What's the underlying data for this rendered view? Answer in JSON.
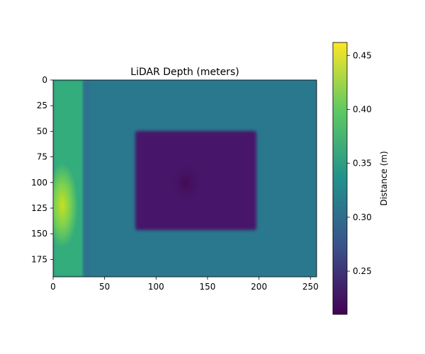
{
  "chart_data": {
    "type": "heatmap",
    "title": "LiDAR Depth (meters)",
    "xlabel": "",
    "ylabel": "",
    "image_size": {
      "width": 256,
      "height": 192
    },
    "xlim": [
      0,
      256
    ],
    "ylim": [
      192,
      0
    ],
    "xticks": [
      0,
      50,
      100,
      150,
      200,
      250
    ],
    "yticks": [
      0,
      25,
      50,
      75,
      100,
      125,
      150,
      175
    ],
    "colormap": "viridis",
    "grid": false,
    "background_depth_m": 0.33,
    "regions": [
      {
        "name": "box",
        "x_range": [
          80,
          198
        ],
        "y_range": [
          50,
          145
        ],
        "depth_m": 0.215,
        "min_depth_m": 0.21
      },
      {
        "name": "left_strip",
        "x_range": [
          0,
          30
        ],
        "y_range": [
          0,
          192
        ],
        "depth_m": 0.37,
        "max_depth_m": 0.46
      },
      {
        "name": "dark_edge",
        "x_range": [
          28,
          36
        ],
        "y_range": [
          0,
          192
        ],
        "depth_m": 0.31
      }
    ],
    "colorbar": {
      "label": "Distance (m)",
      "min": 0.21,
      "max": 0.462,
      "ticks": [
        0.25,
        0.3,
        0.35,
        0.4,
        0.45
      ],
      "tick_labels": [
        "0.25",
        "0.30",
        "0.35",
        "0.40",
        "0.45"
      ]
    }
  }
}
